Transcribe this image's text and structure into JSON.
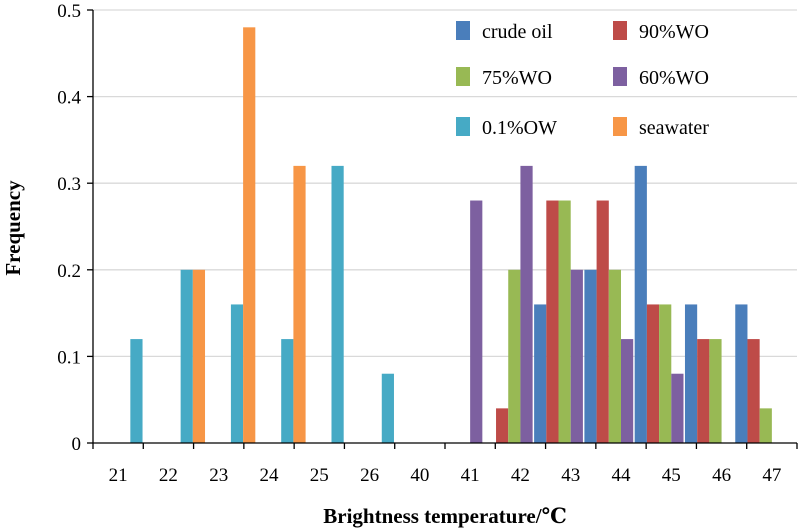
{
  "chart_data": {
    "type": "bar",
    "xlabel": "Brightness temperature/℃",
    "ylabel": "Frequency",
    "ylim": [
      0,
      0.5
    ],
    "yticks": [
      "0",
      "0.1",
      "0.2",
      "0.3",
      "0.4",
      "0.5"
    ],
    "grid": true,
    "legend_position": "top-right",
    "categories": [
      "21",
      "22",
      "23",
      "24",
      "25",
      "26",
      "40",
      "41",
      "42",
      "43",
      "44",
      "45",
      "46",
      "47"
    ],
    "series": [
      {
        "name": "crude oil",
        "color": "#4a7ebb",
        "values": [
          0,
          0,
          0,
          0,
          0,
          0,
          0,
          0,
          0,
          0.16,
          0.2,
          0.32,
          0.16,
          0.16
        ]
      },
      {
        "name": "90%WO",
        "color": "#be4b48",
        "values": [
          0,
          0,
          0,
          0,
          0,
          0,
          0,
          0,
          0.04,
          0.28,
          0.28,
          0.16,
          0.12,
          0.12
        ]
      },
      {
        "name": "75%WO",
        "color": "#98b954",
        "values": [
          0,
          0,
          0,
          0,
          0,
          0,
          0,
          0,
          0.2,
          0.28,
          0.2,
          0.16,
          0.12,
          0.04
        ]
      },
      {
        "name": "60%WO",
        "color": "#7d60a0",
        "values": [
          0,
          0,
          0,
          0,
          0,
          0,
          0,
          0.28,
          0.32,
          0.2,
          0.12,
          0.08,
          0,
          0
        ]
      },
      {
        "name": "0.1%OW",
        "color": "#46aac5",
        "values": [
          0.12,
          0.2,
          0.16,
          0.12,
          0.32,
          0.08,
          0,
          0,
          0,
          0,
          0,
          0,
          0,
          0
        ]
      },
      {
        "name": "seawater",
        "color": "#f79646",
        "values": [
          0,
          0.2,
          0.48,
          0.32,
          0,
          0,
          0,
          0,
          0,
          0,
          0,
          0,
          0,
          0
        ]
      }
    ]
  }
}
